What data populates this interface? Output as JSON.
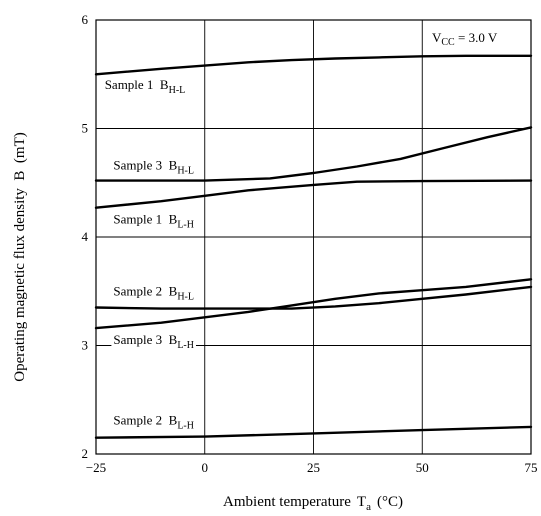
{
  "chart_data": {
    "type": "line",
    "xlabel": "Ambient temperature",
    "xlabel_symbol": "T",
    "xlabel_sub": "a",
    "xlabel_unit": "(°C)",
    "ylabel": "Operating magnetic flux density  B  (mT)",
    "xlim": [
      -25,
      75
    ],
    "ylim": [
      2,
      6
    ],
    "x_ticks": [
      -25,
      0,
      25,
      50,
      75
    ],
    "x_tick_labels": [
      "−25",
      "0",
      "25",
      "50",
      "75"
    ],
    "y_ticks": [
      2,
      3,
      4,
      5,
      6
    ],
    "y_tick_labels": [
      "2",
      "3",
      "4",
      "5",
      "6"
    ],
    "grid": true,
    "annotation": {
      "main": "V",
      "sub": "CC",
      "rest": " = 3.0 V"
    },
    "series": [
      {
        "name": "Sample 1  B",
        "sub": "H-L",
        "x": [
          -25,
          -10,
          0,
          10,
          20,
          30,
          40,
          50,
          60,
          75
        ],
        "y": [
          5.5,
          5.55,
          5.58,
          5.61,
          5.63,
          5.645,
          5.655,
          5.665,
          5.67,
          5.67
        ],
        "label_x": -23,
        "label_y": 5.4
      },
      {
        "name": "Sample 3  B",
        "sub": "H-L",
        "x": [
          -25,
          0,
          15,
          25,
          35,
          45,
          55,
          65,
          75
        ],
        "y": [
          4.52,
          4.52,
          4.54,
          4.59,
          4.65,
          4.72,
          4.82,
          4.92,
          5.01
        ],
        "label_x": -21,
        "label_y": 4.66
      },
      {
        "name": "Sample 1  B",
        "sub": "L-H",
        "x": [
          -25,
          -10,
          0,
          10,
          25,
          35,
          50,
          75
        ],
        "y": [
          4.27,
          4.33,
          4.38,
          4.43,
          4.48,
          4.51,
          4.515,
          4.52
        ],
        "label_x": -21,
        "label_y": 4.16
      },
      {
        "name": "Sample 2  B",
        "sub": "H-L",
        "x": [
          -25,
          -10,
          0,
          10,
          20,
          30,
          40,
          50,
          60,
          75
        ],
        "y": [
          3.35,
          3.34,
          3.34,
          3.34,
          3.34,
          3.36,
          3.39,
          3.43,
          3.47,
          3.54
        ],
        "label_x": -21,
        "label_y": 3.5
      },
      {
        "name": "Sample 3  B",
        "sub": "L-H",
        "x": [
          -25,
          -10,
          0,
          10,
          20,
          30,
          40,
          50,
          60,
          75
        ],
        "y": [
          3.16,
          3.21,
          3.26,
          3.31,
          3.37,
          3.43,
          3.48,
          3.51,
          3.54,
          3.61
        ],
        "label_x": -21,
        "label_y": 3.05
      },
      {
        "name": "Sample 2  B",
        "sub": "L-H",
        "x": [
          -25,
          0,
          25,
          50,
          75
        ],
        "y": [
          2.15,
          2.16,
          2.19,
          2.22,
          2.25
        ],
        "label_x": -21,
        "label_y": 2.31
      }
    ]
  }
}
